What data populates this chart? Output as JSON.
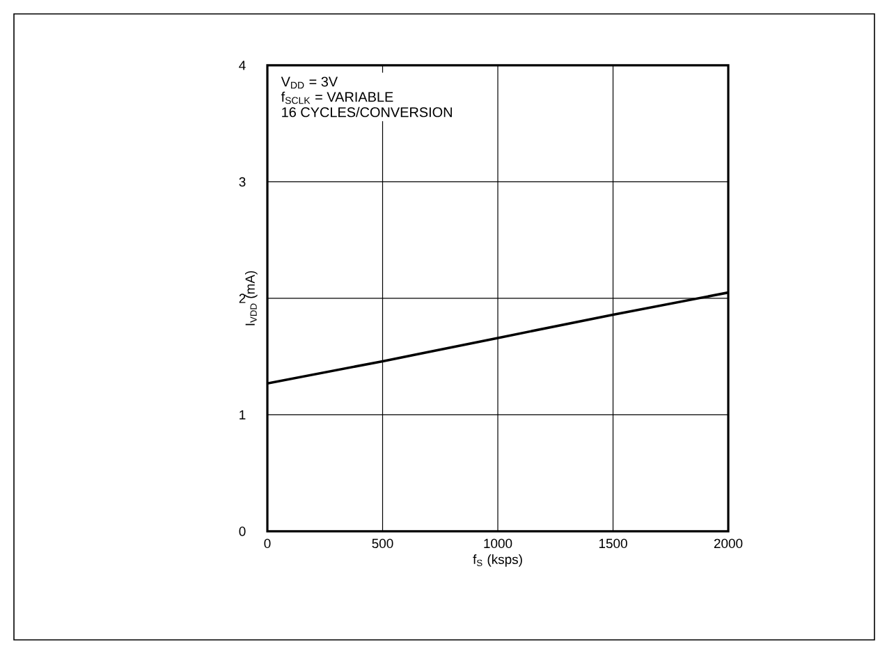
{
  "chart_data": {
    "type": "line",
    "xlabel": "f$_{S}$ (ksps)",
    "ylabel": "I$_{VDD}$ (mA)",
    "annotations": [
      "V$_{DD}$ = 3V",
      "f$_{SCLK}$ = VARIABLE",
      "16 CYCLES/CONVERSION"
    ],
    "x": [
      0,
      500,
      1000,
      1500,
      2000
    ],
    "series": [
      {
        "color": "#000000",
        "values": [
          1.27,
          1.46,
          1.66,
          1.86,
          2.05
        ]
      }
    ],
    "xlim": [
      0,
      2000
    ],
    "ylim": [
      0,
      4
    ],
    "xticks": [
      0,
      500,
      1000,
      1500,
      2000
    ],
    "yticks": [
      0,
      1,
      2,
      3,
      4
    ],
    "grid": true,
    "marker": "none",
    "line_style": "solid"
  }
}
